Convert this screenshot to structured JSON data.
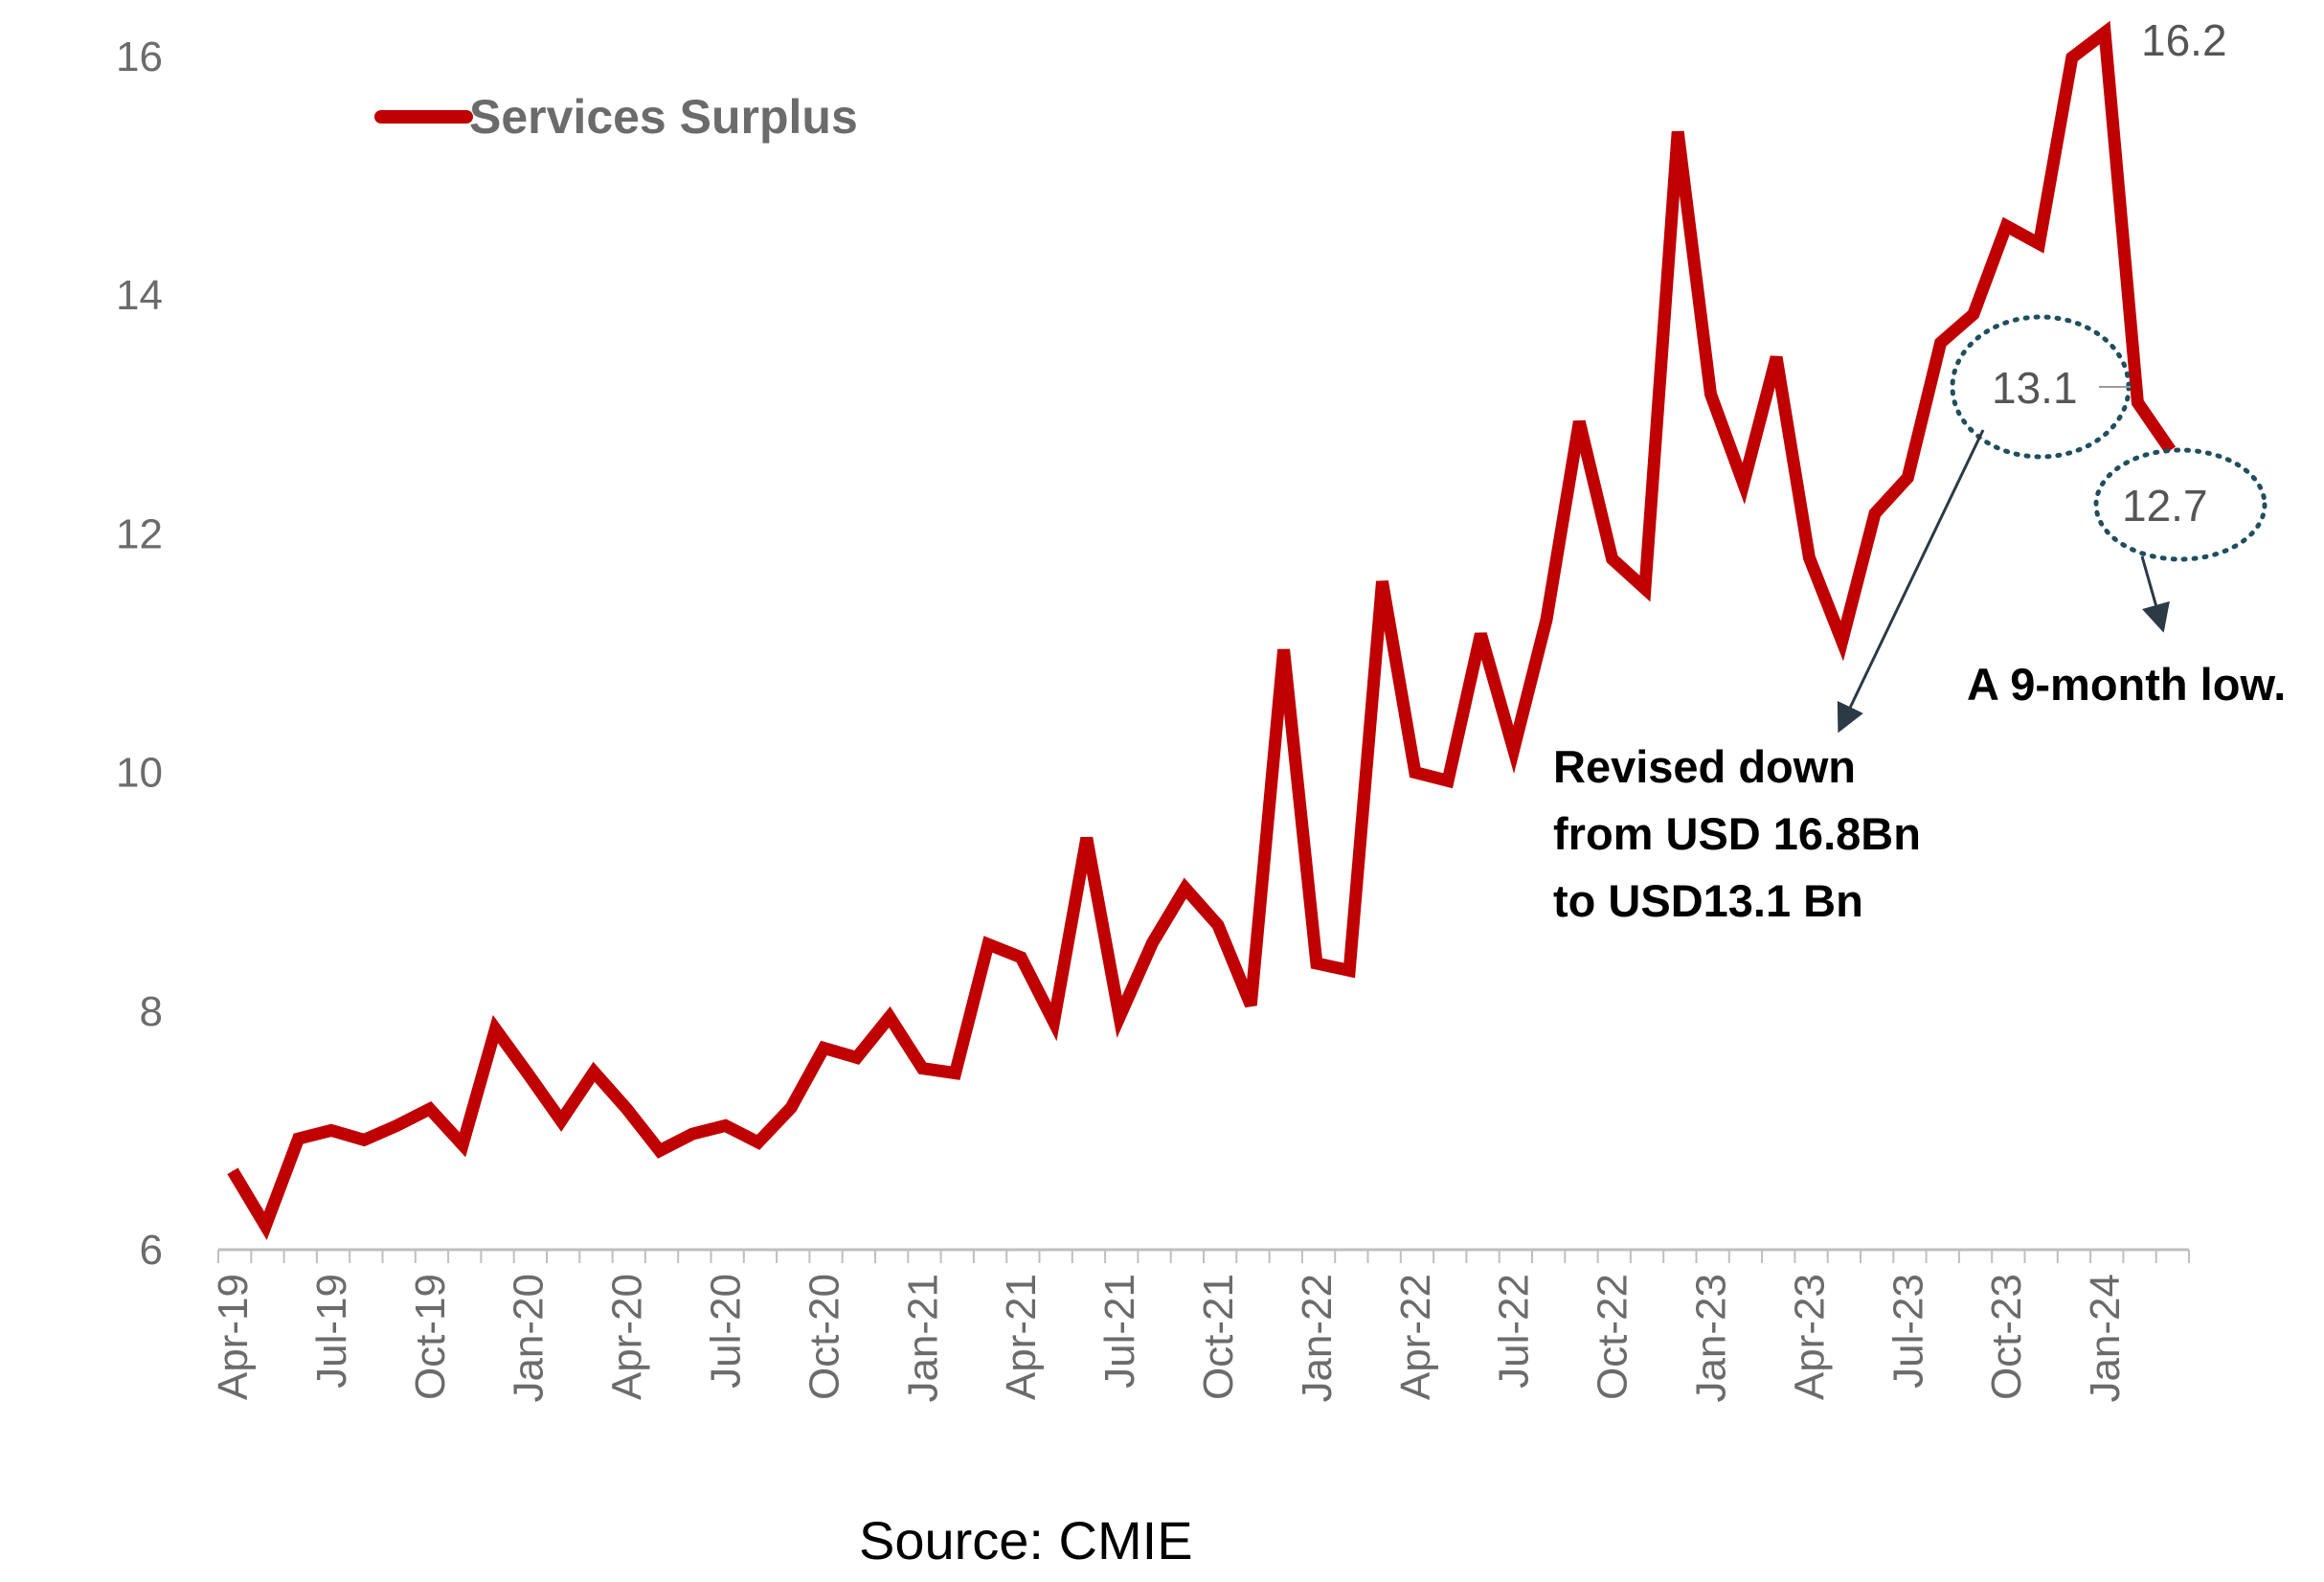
{
  "chart_data": {
    "type": "line",
    "title": "",
    "xlabel": "",
    "ylabel": "",
    "ylim": [
      6,
      16
    ],
    "yticks": [
      "6",
      "8",
      "10",
      "12",
      "14",
      "16"
    ],
    "grid": false,
    "legend": {
      "position": "top-left",
      "entries": [
        "Services Surplus"
      ]
    },
    "x_tick_labels": [
      "Apr-19",
      "Jul-19",
      "Oct-19",
      "Jan-20",
      "Apr-20",
      "Jul-20",
      "Oct-20",
      "Jan-21",
      "Apr-21",
      "Jul-21",
      "Oct-21",
      "Jan-22",
      "Apr-22",
      "Jul-22",
      "Oct-22",
      "Jan-23",
      "Apr-23",
      "Jul-23",
      "Oct-23",
      "Jan-24"
    ],
    "x_tick_every_months": 3,
    "series": [
      {
        "name": "Services Surplus",
        "color": "#c00000",
        "start_month": "Apr-19",
        "end_month": "Mar-24",
        "values": [
          6.66,
          6.2,
          6.93,
          7.0,
          6.92,
          7.04,
          7.18,
          6.88,
          7.85,
          7.47,
          7.08,
          7.49,
          7.18,
          6.83,
          6.97,
          7.04,
          6.9,
          7.19,
          7.69,
          7.61,
          7.95,
          7.52,
          7.48,
          8.56,
          8.45,
          7.91,
          9.45,
          7.95,
          8.57,
          9.03,
          8.72,
          8.05,
          11.03,
          8.4,
          8.34,
          11.6,
          10.0,
          9.93,
          11.16,
          10.19,
          11.28,
          12.94,
          11.79,
          11.54,
          15.37,
          13.17,
          12.42,
          13.48,
          11.8,
          11.1,
          12.17,
          12.47,
          13.6,
          13.84,
          14.58,
          14.43,
          15.99,
          16.2,
          13.1,
          12.7
        ]
      }
    ],
    "data_labels": [
      {
        "month_index": 57,
        "text": "16.2"
      },
      {
        "month_index": 58,
        "text": "13.1",
        "circled": true
      },
      {
        "month_index": 59,
        "text": "12.7",
        "circled": true
      }
    ],
    "annotations": [
      {
        "lines": [
          "Revised down",
          "from USD 16.8Bn",
          "to USD13.1 Bn"
        ],
        "points_to": "13.1"
      },
      {
        "lines": [
          "A 9-month low."
        ],
        "points_to": "12.7"
      }
    ],
    "source": "Source:  CMIE"
  }
}
